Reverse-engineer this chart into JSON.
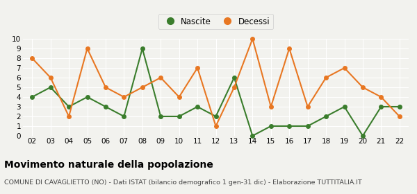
{
  "years": [
    "02",
    "03",
    "04",
    "05",
    "06",
    "07",
    "08",
    "09",
    "10",
    "11",
    "12",
    "13",
    "14",
    "15",
    "16",
    "17",
    "18",
    "19",
    "20",
    "21",
    "22"
  ],
  "nascite": [
    4,
    5,
    3,
    4,
    3,
    2,
    9,
    2,
    2,
    3,
    2,
    6,
    0,
    1,
    1,
    1,
    2,
    3,
    0,
    3,
    3
  ],
  "decessi": [
    8,
    6,
    2,
    9,
    5,
    4,
    5,
    6,
    4,
    7,
    1,
    5,
    10,
    3,
    9,
    3,
    6,
    7,
    5,
    4,
    2
  ],
  "nascite_color": "#3a7d2c",
  "decessi_color": "#e87722",
  "background_color": "#f2f2ee",
  "grid_color": "#ffffff",
  "ylim": [
    0,
    10
  ],
  "yticks": [
    0,
    1,
    2,
    3,
    4,
    5,
    6,
    7,
    8,
    9,
    10
  ],
  "title": "Movimento naturale della popolazione",
  "subtitle": "COMUNE DI CAVAGLIETTO (NO) - Dati ISTAT (bilancio demografico 1 gen-31 dic) - Elaborazione TUTTITALIA.IT",
  "legend_nascite": "Nascite",
  "legend_decessi": "Decessi",
  "title_fontsize": 10,
  "subtitle_fontsize": 6.8,
  "legend_fontsize": 8.5,
  "tick_fontsize": 7.5,
  "marker": "o",
  "marker_size": 4,
  "line_width": 1.5
}
